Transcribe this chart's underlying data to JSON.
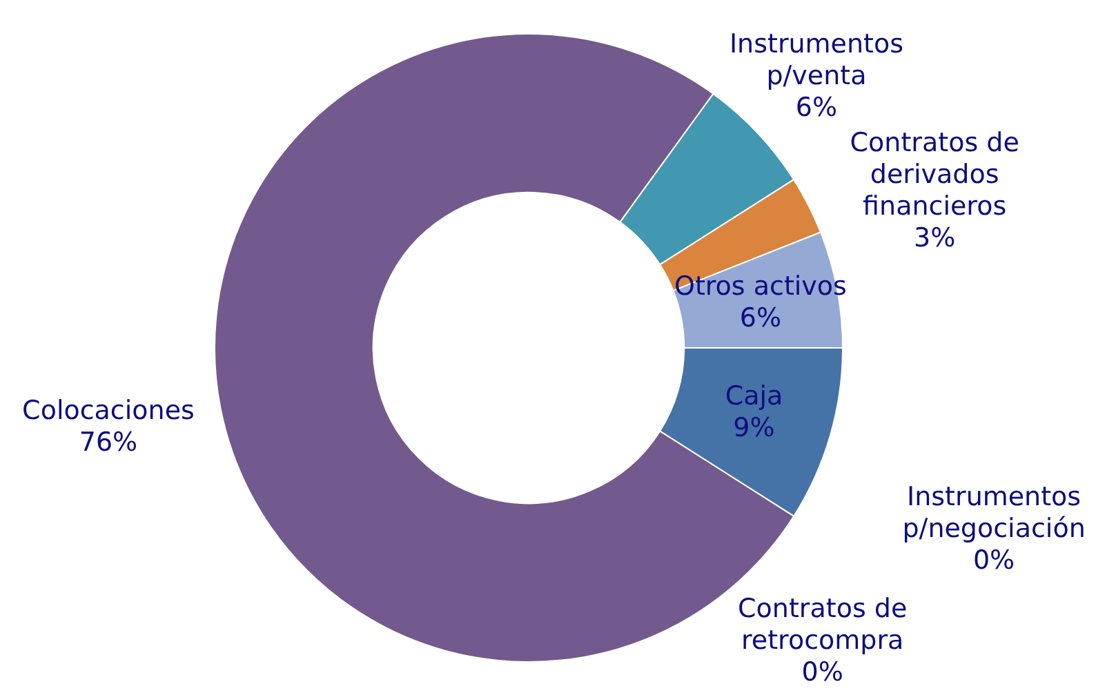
{
  "chart_data": {
    "type": "donut",
    "categories": [
      "Caja",
      "Instrumentos p/negociación",
      "Contratos de retrocompra",
      "Colocaciones",
      "Instrumentos p/venta",
      "Contratos de derivados financieros",
      "Otros activos"
    ],
    "values": [
      9,
      0,
      0,
      76,
      6,
      3,
      6
    ],
    "value_labels": [
      "9%",
      "0%",
      "0%",
      "76%",
      "6%",
      "3%",
      "6%"
    ],
    "colors": [
      "#4573a7",
      "#9bbb59",
      "#a5a55a",
      "#725a8e",
      "#4198b0",
      "#db843d",
      "#94a9d3"
    ],
    "legend": false
  }
}
